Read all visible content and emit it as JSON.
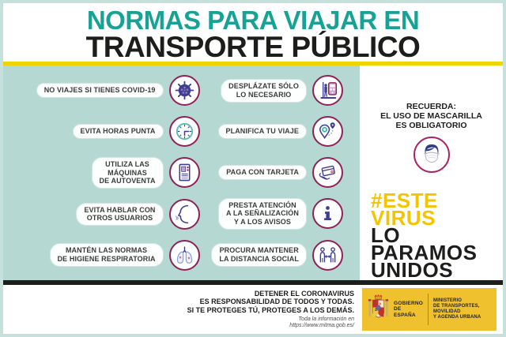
{
  "colors": {
    "teal_title": "#18a295",
    "teal_frame": "#c6e0dc",
    "teal_panel": "#b5d9d2",
    "yellow_line": "#efd500",
    "yellow_hashtag": "#f4c400",
    "yellow_logo": "#f0c12e",
    "icon_ring_magenta": "#8e2157",
    "icon_navy": "#3d3e92",
    "text_black": "#1d1d1b"
  },
  "header": {
    "title_line1": "NORMAS PARA VIAJAR EN",
    "title_line2": "TRANSPORTE PÚBLICO"
  },
  "rules": {
    "left": [
      {
        "label": "NO VIAJES SI TIENES COVID-19",
        "icon": "virus-icon"
      },
      {
        "label": "EVITA HORAS PUNTA",
        "icon": "clock-icon"
      },
      {
        "label": "UTILIZA LAS\nMÁQUINAS\nDE AUTOVENTA",
        "icon": "vending-machine-icon"
      },
      {
        "label": "EVITA HABLAR CON\nOTROS USUARIOS",
        "icon": "talking-face-icon"
      },
      {
        "label": "MANTÉN LAS NORMAS\nDE HIGIENE RESPIRATORIA",
        "icon": "lungs-icon"
      }
    ],
    "right": [
      {
        "label": "DESPLÁZATE SÓLO\nLO NECESARIO",
        "icon": "train-platform-icon"
      },
      {
        "label": "PLANIFICA TU VIAJE",
        "icon": "map-pin-icon"
      },
      {
        "label": "PAGA CON TARJETA",
        "icon": "card-payment-icon"
      },
      {
        "label": "PRESTA ATENCIÓN\nA LA SEÑALIZACIÓN\nY A LOS AVISOS",
        "icon": "info-icon"
      },
      {
        "label": "PROCURA MANTENER\nLA DISTANCIA SOCIAL",
        "icon": "social-distance-icon"
      }
    ]
  },
  "reminder": {
    "text": "RECUERDA:\nEL USO DE MASCARILLA\nES OBLIGATORIO"
  },
  "campaign": {
    "hashtag": "#ESTE\nVIRUS",
    "slogan": "LO\nPARAMOS\nUNIDOS"
  },
  "footer": {
    "message": "DETENER EL CORONAVIRUS\nES RESPONSABILIDAD DE TODOS Y TODAS.\nSI TE PROTEGES TÚ, PROTEGES A LOS DEMÁS.",
    "info_note": "Toda la información en\nhttps://www.mitma.gob.es/",
    "logo": {
      "government": "GOBIERNO\nDE ESPAÑA",
      "ministry": "MINISTERIO\nDE TRANSPORTES, MOVILIDAD\nY AGENDA URBANA"
    }
  }
}
